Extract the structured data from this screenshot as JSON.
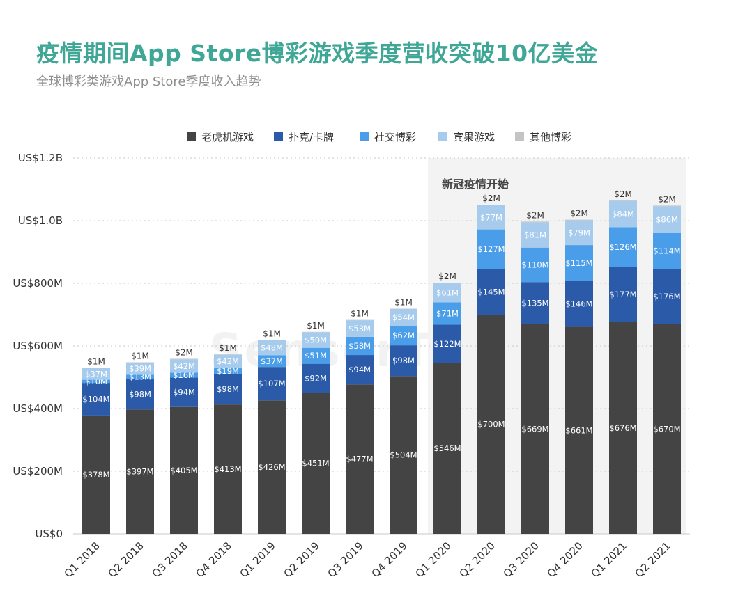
{
  "title": "疫情期间App Store博彩游戏季度营收突破10亿美金",
  "subtitle": "全球博彩类游戏App Store季度收入趋势",
  "watermark": "SensorTower",
  "annotation": "新冠疫情开始",
  "colors": {
    "title": "#3fa796",
    "shade": "#f3f3f3",
    "grid": "#c8c8c8"
  },
  "chart_data": {
    "type": "bar",
    "stacked": true,
    "categories": [
      "Q1 2018",
      "Q2 2018",
      "Q3 2018",
      "Q4 2018",
      "Q1 2019",
      "Q2 2019",
      "Q3 2019",
      "Q4 2019",
      "Q1 2020",
      "Q2 2020",
      "Q3 2020",
      "Q4 2020",
      "Q1 2021",
      "Q2 2021"
    ],
    "series": [
      {
        "name": "老虎机游戏",
        "color": "#444444",
        "values": [
          378,
          397,
          405,
          413,
          426,
          451,
          477,
          504,
          546,
          700,
          669,
          661,
          676,
          670
        ],
        "labels": [
          "$378M",
          "$397M",
          "$405M",
          "$413M",
          "$426M",
          "$451M",
          "$477M",
          "$504M",
          "$546M",
          "$700M",
          "$669M",
          "$661M",
          "$676M",
          "$670M"
        ]
      },
      {
        "name": "扑克/卡牌",
        "color": "#2a5aa8",
        "values": [
          104,
          98,
          94,
          98,
          107,
          92,
          94,
          98,
          122,
          145,
          135,
          146,
          177,
          176
        ],
        "labels": [
          "$104M",
          "$98M",
          "$94M",
          "$98M",
          "$107M",
          "$92M",
          "$94M",
          "$98M",
          "$122M",
          "$145M",
          "$135M",
          "$146M",
          "$177M",
          "$176M"
        ]
      },
      {
        "name": "社交博彩",
        "color": "#4a9de8",
        "values": [
          10,
          13,
          16,
          19,
          37,
          51,
          58,
          62,
          71,
          127,
          110,
          115,
          126,
          114
        ],
        "labels": [
          "$10M",
          "$13M",
          "$16M",
          "$19M",
          "$37M",
          "$51M",
          "$58M",
          "$62M",
          "$71M",
          "$127M",
          "$110M",
          "$115M",
          "$126M",
          "$114M"
        ]
      },
      {
        "name": "宾果游戏",
        "color": "#a7cbed",
        "values": [
          37,
          39,
          42,
          42,
          48,
          50,
          53,
          54,
          61,
          77,
          81,
          79,
          84,
          86
        ],
        "labels": [
          "$37M",
          "$39M",
          "$42M",
          "$42M",
          "$48M",
          "$50M",
          "$53M",
          "$54M",
          "$61M",
          "$77M",
          "$81M",
          "$79M",
          "$84M",
          "$86M"
        ]
      },
      {
        "name": "其他博彩",
        "color": "#c4c4c4",
        "values": [
          1,
          1,
          2,
          1,
          1,
          1,
          1,
          1,
          2,
          2,
          2,
          2,
          2,
          2
        ],
        "labels": [
          "$1M",
          "$1M",
          "$2M",
          "$1M",
          "$1M",
          "$1M",
          "$1M",
          "$1M",
          "$2M",
          "$2M",
          "$2M",
          "$2M",
          "$2M",
          "$2M"
        ]
      }
    ],
    "y_ticks": [
      {
        "value": 0,
        "label": "US$0"
      },
      {
        "value": 200,
        "label": "US$200M"
      },
      {
        "value": 400,
        "label": "US$400M"
      },
      {
        "value": 600,
        "label": "US$600M"
      },
      {
        "value": 800,
        "label": "US$800M"
      },
      {
        "value": 1000,
        "label": "US$1.0B"
      },
      {
        "value": 1200,
        "label": "US$1.2B"
      }
    ],
    "ylim": [
      0,
      1200
    ],
    "unit": "US$ millions",
    "grid": true,
    "legend_position": "top-center",
    "highlight_range": [
      "Q1 2020",
      "Q2 2021"
    ]
  }
}
